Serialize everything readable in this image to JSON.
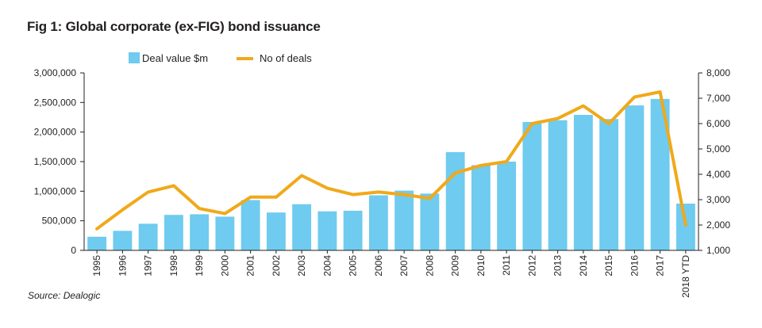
{
  "chart_data": {
    "type": "bar",
    "title": "Fig 1: Global corporate (ex-FIG) bond issuance",
    "source": "Source: Dealogic",
    "categories": [
      "1995",
      "1996",
      "1997",
      "1998",
      "1999",
      "2000",
      "2001",
      "2002",
      "2003",
      "2004",
      "2005",
      "2006",
      "2007",
      "2008",
      "2009",
      "2010",
      "2011",
      "2012",
      "2013",
      "2014",
      "2015",
      "2016",
      "2017",
      "2018 YTD"
    ],
    "series": [
      {
        "name": "Deal value $m",
        "type": "bar",
        "axis": "left",
        "color": "#6fcbef",
        "values": [
          230000,
          330000,
          450000,
          600000,
          610000,
          570000,
          850000,
          640000,
          780000,
          660000,
          670000,
          930000,
          1010000,
          960000,
          1660000,
          1440000,
          1500000,
          2170000,
          2200000,
          2290000,
          2220000,
          2450000,
          2560000,
          790000
        ]
      },
      {
        "name": "No of deals",
        "type": "line",
        "axis": "right",
        "color": "#f0a91a",
        "values": [
          1850,
          2600,
          3300,
          3550,
          2650,
          2450,
          3100,
          3100,
          3950,
          3450,
          3200,
          3300,
          3200,
          3050,
          4050,
          4350,
          4500,
          6000,
          6200,
          6700,
          6000,
          7050,
          7250,
          2000
        ]
      }
    ],
    "y_left": {
      "min": 0,
      "max": 3000000,
      "ticks": [
        "3,000,000",
        "2,500,000",
        "2,000,000",
        "1,500,000",
        "1,000,000",
        "500,000",
        "0"
      ],
      "tick_values": [
        3000000,
        2500000,
        2000000,
        1500000,
        1000000,
        500000,
        0
      ]
    },
    "y_right": {
      "min": 1000,
      "max": 8000,
      "ticks": [
        "8,000",
        "7,000",
        "6,000",
        "5,000",
        "4,000",
        "3,000",
        "2,000",
        "1,000"
      ],
      "tick_values": [
        8000,
        7000,
        6000,
        5000,
        4000,
        3000,
        2000,
        1000
      ]
    },
    "xlabel": "",
    "ylabel": "",
    "legend_position": "top-left",
    "grid": false
  }
}
